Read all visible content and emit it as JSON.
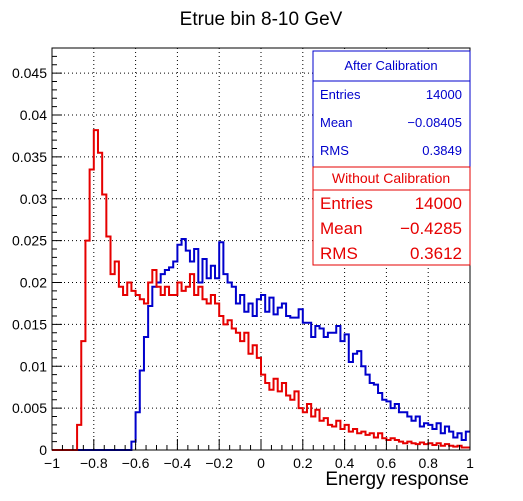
{
  "chart_data": {
    "type": "histogram",
    "title": "Etrue bin 8-10 GeV",
    "xlabel": "Energy response",
    "ylabel": "",
    "xlim": [
      -1,
      1
    ],
    "ylim": [
      0,
      0.048
    ],
    "grid": true,
    "x_ticks": [
      "−1",
      "−0.8",
      "−0.6",
      "−0.4",
      "−0.2",
      "0",
      "0.2",
      "0.4",
      "0.6",
      "0.8",
      "1"
    ],
    "y_ticks": [
      "0",
      "0.005",
      "0.01",
      "0.015",
      "0.02",
      "0.025",
      "0.03",
      "0.035",
      "0.04",
      "0.045"
    ],
    "bin_width": 0.02,
    "bin_start": -1,
    "colors": {
      "after": "#0000cc",
      "without": "#e60000",
      "axis": "#000000",
      "grid": "#000000"
    },
    "series": [
      {
        "name": "After Calibration",
        "color": "#0000cc",
        "values": [
          0,
          0,
          0,
          0,
          0,
          0,
          0,
          0,
          0,
          0,
          0,
          0,
          0,
          0,
          0,
          0,
          0,
          0,
          0,
          0.001,
          0.0045,
          0.0095,
          0.0135,
          0.0172,
          0.0195,
          0.02,
          0.021,
          0.0215,
          0.0218,
          0.0225,
          0.0245,
          0.0252,
          0.0238,
          0.0225,
          0.024,
          0.02,
          0.0228,
          0.0205,
          0.022,
          0.0205,
          0.0248,
          0.021,
          0.02,
          0.0195,
          0.0175,
          0.0185,
          0.0165,
          0.0175,
          0.016,
          0.018,
          0.0185,
          0.0165,
          0.0182,
          0.0162,
          0.017,
          0.0175,
          0.016,
          0.0158,
          0.0158,
          0.0168,
          0.0152,
          0.0152,
          0.0135,
          0.0148,
          0.0145,
          0.0135,
          0.014,
          0.014,
          0.0148,
          0.013,
          0.0138,
          0.0105,
          0.0115,
          0.0118,
          0.01,
          0.009,
          0.008,
          0.0078,
          0.0068,
          0.006,
          0.0058,
          0.005,
          0.0055,
          0.0045,
          0.0045,
          0.004,
          0.0035,
          0.004,
          0.0028,
          0.0032,
          0.003,
          0.0025,
          0.0032,
          0.002,
          0.0028,
          0.0022,
          0.0015,
          0.002,
          0.0012,
          0.0022
        ]
      },
      {
        "name": "Without Calibration",
        "color": "#e60000",
        "values": [
          0,
          0,
          0,
          0,
          0,
          0,
          0.003,
          0.013,
          0.025,
          0.0335,
          0.0382,
          0.0355,
          0.0305,
          0.0255,
          0.021,
          0.0225,
          0.0195,
          0.0185,
          0.02,
          0.019,
          0.0185,
          0.018,
          0.0175,
          0.02,
          0.0215,
          0.0195,
          0.0185,
          0.0195,
          0.0185,
          0.0185,
          0.02,
          0.019,
          0.0195,
          0.021,
          0.0185,
          0.0195,
          0.018,
          0.0175,
          0.0185,
          0.0175,
          0.016,
          0.015,
          0.0155,
          0.0145,
          0.014,
          0.013,
          0.014,
          0.0115,
          0.0125,
          0.011,
          0.009,
          0.008,
          0.0072,
          0.0085,
          0.007,
          0.008,
          0.0065,
          0.006,
          0.007,
          0.005,
          0.0045,
          0.0055,
          0.004,
          0.0048,
          0.0035,
          0.0038,
          0.003,
          0.0028,
          0.0035,
          0.0025,
          0.003,
          0.0022,
          0.0025,
          0.002,
          0.0022,
          0.0018,
          0.002,
          0.0015,
          0.002,
          0.0014,
          0.0012,
          0.0014,
          0.0012,
          0.001,
          0.0008,
          0.001,
          0.0008,
          0.0007,
          0.0009,
          0.0007,
          0.0008,
          0.0006,
          0.0008,
          0.0005,
          0.0007,
          0.0005,
          0.0004,
          0.0005,
          0.0003,
          0.0003
        ]
      }
    ]
  },
  "stats": {
    "after": {
      "title": "After Calibration",
      "rows": [
        {
          "label": "Entries",
          "value": "14000"
        },
        {
          "label": "Mean",
          "value": "−0.08405"
        },
        {
          "label": "RMS",
          "value": "0.3849"
        }
      ]
    },
    "without": {
      "title": "Without Calibration",
      "rows": [
        {
          "label": "Entries",
          "value": "14000"
        },
        {
          "label": "Mean",
          "value": "−0.4285"
        },
        {
          "label": "RMS",
          "value": "0.3612"
        }
      ]
    }
  }
}
